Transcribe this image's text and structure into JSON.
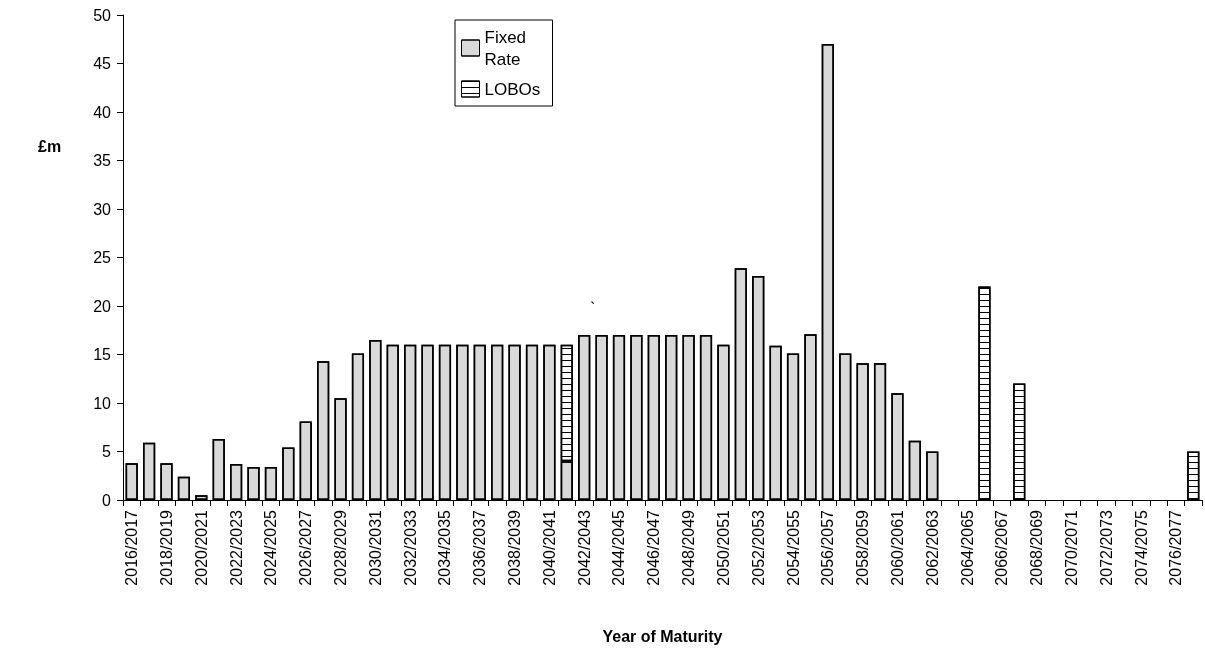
{
  "chart_data": {
    "type": "bar",
    "stacked": true,
    "xlabel": "Year of Maturity",
    "ylabel": "£m",
    "categories": [
      "2016/2017",
      null,
      "2018/2019",
      null,
      "2020/2021",
      null,
      "2022/2023",
      null,
      "2024/2025",
      null,
      "2026/2027",
      null,
      "2028/2029",
      null,
      "2030/2031",
      null,
      "2032/2033",
      null,
      "2034/2035",
      null,
      "2036/2037",
      null,
      "2038/2039",
      null,
      "2040/2041",
      null,
      "2042/2043",
      null,
      "2044/2045",
      null,
      "2046/2047",
      null,
      "2048/2049",
      null,
      "2050/2051",
      null,
      "2052/2053",
      null,
      "2054/2055",
      null,
      "2056/2057",
      null,
      "2058/2059",
      null,
      "2060/2061",
      null,
      "2062/2063",
      null,
      "2064/2065",
      null,
      "2066/2067",
      null,
      "2068/2069",
      null,
      "2070/2071",
      null,
      "2072/2073",
      null,
      "2074/2075",
      null,
      "2076/2077",
      null
    ],
    "series": [
      {
        "name": "Fixed Rate",
        "color": "#d9d9d9",
        "values": [
          3.8,
          5.9,
          3.8,
          2.4,
          0.5,
          6.3,
          3.7,
          3.4,
          3.4,
          5.4,
          8.1,
          14.3,
          10.5,
          15.1,
          16.5,
          16,
          16,
          16,
          16,
          16,
          16,
          16,
          16,
          16,
          16,
          4,
          17,
          17,
          17,
          17,
          17,
          17,
          17,
          17,
          16,
          23.9,
          23.1,
          15.9,
          15.1,
          17.1,
          47,
          15.1,
          14.1,
          14.1,
          11,
          6.1,
          5,
          0,
          0,
          null,
          0,
          null,
          0,
          0,
          0,
          0,
          0,
          0,
          0,
          0,
          0,
          null
        ]
      },
      {
        "name": "LOBOs",
        "color": "#ffffff",
        "values": [
          null,
          null,
          null,
          null,
          null,
          null,
          null,
          null,
          null,
          null,
          null,
          null,
          null,
          null,
          null,
          null,
          null,
          null,
          null,
          null,
          null,
          null,
          null,
          null,
          null,
          12,
          null,
          null,
          null,
          null,
          null,
          null,
          null,
          null,
          null,
          null,
          null,
          null,
          null,
          null,
          null,
          null,
          null,
          null,
          null,
          null,
          null,
          null,
          null,
          22,
          null,
          12,
          null,
          null,
          null,
          null,
          null,
          null,
          null,
          null,
          null,
          5
        ]
      }
    ],
    "ylim": [
      0,
      50
    ],
    "yticks": [
      0,
      5,
      10,
      15,
      20,
      25,
      30,
      35,
      40,
      45,
      50
    ],
    "grid": false,
    "legend": "top",
    "annotations": [
      "`"
    ]
  }
}
